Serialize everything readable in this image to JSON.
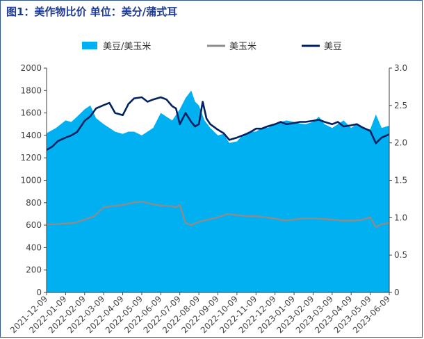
{
  "title": "图1：美作物比价 单位：美分/蒲式耳",
  "chart_data": {
    "type": "area+line",
    "x_ticks": [
      "2021-12-09",
      "2022-01-09",
      "2022-02-09",
      "2022-03-09",
      "2022-04-09",
      "2022-05-09",
      "2022-06-09",
      "2022-07-09",
      "2022-08-09",
      "2022-09-09",
      "2022-10-09",
      "2022-11-09",
      "2022-12-09",
      "2023-01-09",
      "2023-02-09",
      "2023-03-09",
      "2023-04-09",
      "2023-05-09",
      "2023-06-09"
    ],
    "y_left": {
      "ticks": [
        0,
        200,
        400,
        600,
        800,
        1000,
        1200,
        1400,
        1600,
        1800,
        2000
      ],
      "ylim": [
        0,
        2000
      ]
    },
    "y_right": {
      "ticks": [
        "0",
        "0.5",
        "1.0",
        "1.5",
        "2.0",
        "2.5",
        "3.0"
      ],
      "ylim": [
        0,
        3.0
      ]
    },
    "legend_position": "top",
    "grid": false,
    "series": [
      {
        "name": "美豆/美玉米",
        "type": "area",
        "axis": "right",
        "color": "#00b0f0",
        "x": [
          0,
          0.5,
          1,
          1.3,
          1.6,
          2,
          2.3,
          2.6,
          3,
          3.3,
          3.6,
          4,
          4.3,
          4.6,
          5,
          5.3,
          5.6,
          6,
          6.3,
          6.6,
          7,
          7.3,
          7.6,
          7.8,
          8,
          8.3,
          8.6,
          9,
          9.3,
          9.6,
          10,
          10.3,
          10.6,
          11,
          11.3,
          11.6,
          12,
          12.3,
          12.6,
          13,
          13.3,
          13.6,
          14,
          14.3,
          14.6,
          15,
          15.3,
          15.6,
          16,
          16.3,
          16.6,
          17,
          17.3,
          17.6,
          18
        ],
        "values": [
          2.13,
          2.2,
          2.3,
          2.28,
          2.35,
          2.45,
          2.5,
          2.33,
          2.25,
          2.2,
          2.15,
          2.12,
          2.15,
          2.15,
          2.1,
          2.15,
          2.2,
          2.4,
          2.35,
          2.3,
          2.45,
          2.6,
          2.7,
          2.55,
          2.5,
          2.3,
          2.2,
          2.1,
          2.12,
          2.0,
          2.02,
          2.1,
          2.15,
          2.15,
          2.2,
          2.2,
          2.25,
          2.28,
          2.3,
          2.28,
          2.26,
          2.25,
          2.28,
          2.35,
          2.25,
          2.2,
          2.25,
          2.3,
          2.2,
          2.25,
          2.2,
          2.18,
          2.38,
          2.2,
          2.23
        ]
      },
      {
        "name": "美玉米",
        "type": "line",
        "axis": "left",
        "color": "#8c8c8c",
        "x": [
          0,
          0.5,
          1,
          1.5,
          2,
          2.5,
          3,
          3.5,
          4,
          4.5,
          5,
          5.5,
          6,
          6.5,
          6.8,
          7,
          7.3,
          7.6,
          8,
          8.5,
          9,
          9.5,
          10,
          10.5,
          11,
          11.5,
          12,
          12.5,
          13,
          13.5,
          14,
          14.5,
          15,
          15.5,
          16,
          16.5,
          17,
          17.3,
          17.6,
          18
        ],
        "values": [
          605,
          610,
          615,
          620,
          650,
          680,
          760,
          770,
          780,
          800,
          810,
          790,
          775,
          770,
          760,
          780,
          620,
          600,
          630,
          650,
          670,
          700,
          690,
          680,
          680,
          670,
          660,
          640,
          650,
          660,
          660,
          655,
          650,
          640,
          640,
          645,
          670,
          580,
          610,
          620
        ]
      },
      {
        "name": "美豆",
        "type": "line",
        "axis": "left",
        "color": "#002060",
        "x": [
          0,
          0.3,
          0.6,
          1,
          1.3,
          1.6,
          2,
          2.3,
          2.6,
          3,
          3.3,
          3.6,
          4,
          4.3,
          4.6,
          5,
          5.3,
          5.6,
          6,
          6.3,
          6.6,
          6.8,
          7,
          7.3,
          7.6,
          7.8,
          8,
          8.2,
          8.4,
          8.6,
          9,
          9.3,
          9.6,
          10,
          10.3,
          10.6,
          11,
          11.3,
          11.6,
          12,
          12.3,
          12.6,
          13,
          13.3,
          13.6,
          14,
          14.3,
          14.6,
          15,
          15.3,
          15.6,
          16,
          16.3,
          16.6,
          17,
          17.3,
          17.6,
          18
        ],
        "values": [
          1270,
          1300,
          1350,
          1380,
          1400,
          1430,
          1530,
          1570,
          1640,
          1670,
          1690,
          1600,
          1580,
          1680,
          1730,
          1740,
          1700,
          1720,
          1740,
          1720,
          1660,
          1640,
          1500,
          1600,
          1520,
          1480,
          1500,
          1700,
          1550,
          1500,
          1450,
          1420,
          1360,
          1380,
          1400,
          1420,
          1460,
          1460,
          1480,
          1500,
          1520,
          1500,
          1510,
          1520,
          1520,
          1530,
          1540,
          1520,
          1500,
          1520,
          1480,
          1490,
          1500,
          1470,
          1440,
          1330,
          1380,
          1410
        ]
      }
    ]
  }
}
